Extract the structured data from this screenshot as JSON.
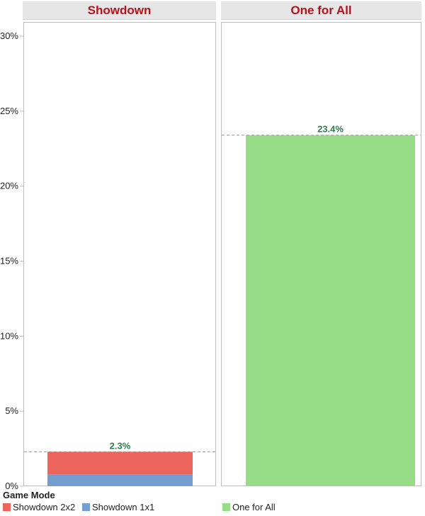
{
  "chart_data": {
    "type": "bar",
    "stacked": true,
    "panels": [
      {
        "title": "Showdown",
        "total_label": "2.3%",
        "segments": [
          {
            "series": "Showdown 1x1",
            "value": 0.8
          },
          {
            "series": "Showdown 2x2",
            "value": 1.5
          }
        ]
      },
      {
        "title": "One for All",
        "total_label": "23.4%",
        "segments": [
          {
            "series": "One for All",
            "value": 23.4
          }
        ]
      }
    ],
    "ylim": [
      0,
      30
    ],
    "yticks": [
      "0%",
      "5%",
      "10%",
      "15%",
      "20%",
      "25%",
      "30%"
    ],
    "ytick_values": [
      0,
      5,
      10,
      15,
      20,
      25,
      30
    ],
    "reference_lines": "dashed line at each panel total",
    "grid": false,
    "legend": {
      "title": "Game Mode",
      "placement": "bottom",
      "items": [
        {
          "label": "Showdown 2x2",
          "color": "#ec665e"
        },
        {
          "label": "Showdown 1x1",
          "color": "#739ecf"
        },
        {
          "label": "One for All",
          "color": "#97dc86"
        }
      ]
    }
  },
  "colors": {
    "header_text": "#b5121b",
    "data_label": "#2e7d4f",
    "reference_line": "#999999"
  }
}
